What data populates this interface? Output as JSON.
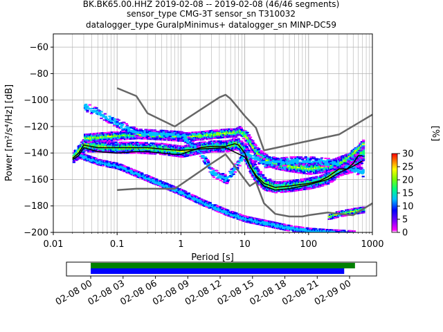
{
  "title": {
    "line1": "BK.BK65.00.HHZ   2019-02-08 -- 2019-02-08  (46/46 segments)",
    "line2": "sensor_type CMG-3T sensor_sn T310032",
    "line3": "datalogger_type GuralpMinimus+ datalogger_sn MINP-DC59"
  },
  "colorbar_label": "[%]",
  "colorbar_ticks": [
    "0",
    "5",
    "10",
    "15",
    "20",
    "25",
    "30"
  ],
  "chart_data": [
    {
      "type": "heatmap",
      "subtype": "probabilistic-power-spectral-density",
      "xlabel": "Period [s]",
      "ylabel": "Power [m²/s⁴/Hz] [dB]",
      "xscale": "log",
      "xlim": [
        0.01,
        1000
      ],
      "ylim": [
        -200,
        -50
      ],
      "x_ticks": [
        0.01,
        0.1,
        1,
        10,
        100,
        1000
      ],
      "x_tick_labels": [
        "0.01",
        "0.1",
        "1",
        "10",
        "100",
        "1000"
      ],
      "y_ticks": [
        -200,
        -180,
        -160,
        -140,
        -120,
        -100,
        -80,
        -60
      ],
      "y_tick_labels": [
        "−200",
        "−180",
        "−160",
        "−140",
        "−120",
        "−100",
        "−80",
        "−60"
      ],
      "grid": true,
      "colormap": [
        "#ffffff",
        "#ff00ff",
        "#8000ff",
        "#0000ff",
        "#00bfff",
        "#00ff80",
        "#80ff00",
        "#ffff00",
        "#ff8000",
        "#ff0000"
      ],
      "colorbar_range": [
        0,
        30
      ],
      "density_bands": [
        {
          "name": "main",
          "x": [
            0.02,
            0.025,
            0.03,
            0.05,
            0.1,
            0.2,
            0.5,
            1,
            2,
            3,
            5,
            7,
            8,
            10,
            12,
            15,
            20,
            30,
            50,
            70,
            100,
            150,
            200,
            300,
            500,
            700
          ],
          "y": [
            -143,
            -138,
            -134,
            -135,
            -136,
            -136,
            -137,
            -139,
            -136,
            -135,
            -135,
            -133,
            -134,
            -140,
            -150,
            -157,
            -163,
            -166,
            -165,
            -164,
            -163,
            -161,
            -158,
            -152,
            -148,
            -140
          ],
          "spread": [
            4,
            5,
            5,
            4,
            4,
            4,
            4,
            4,
            4,
            4,
            4,
            4,
            5,
            7,
            6,
            6,
            5,
            4,
            4,
            4,
            4,
            4,
            5,
            5,
            6,
            6
          ]
        },
        {
          "name": "upper",
          "x": [
            0.03,
            0.05,
            0.1,
            0.2,
            0.5,
            1,
            2,
            3,
            5,
            7,
            8,
            10,
            15,
            20,
            30,
            50,
            100,
            200,
            300,
            500,
            700
          ],
          "y": [
            -129,
            -128,
            -127,
            -126,
            -127,
            -128,
            -127,
            -126,
            -125,
            -125,
            -123,
            -127,
            -140,
            -145,
            -148,
            -150,
            -152,
            -150,
            -147,
            -143,
            -138
          ],
          "spread": [
            3,
            3,
            3,
            3,
            3,
            3,
            3,
            3,
            3,
            3,
            3,
            4,
            4,
            4,
            4,
            4,
            4,
            4,
            4,
            4,
            4
          ]
        },
        {
          "name": "scattered",
          "x": [
            0.03,
            0.05,
            0.1,
            0.2,
            0.5,
            1,
            2,
            3,
            5,
            10,
            20,
            50,
            100,
            300,
            700
          ],
          "y": [
            -105,
            -110,
            -118,
            -125,
            -126,
            -127,
            -140,
            -155,
            -160,
            -140,
            -148,
            -146,
            -146,
            -148,
            -155
          ],
          "spread": [
            3,
            3,
            3,
            3,
            3,
            3,
            3,
            3,
            3,
            3,
            3,
            3,
            3,
            3,
            3
          ]
        },
        {
          "name": "low-diagonal",
          "x": [
            0.025,
            0.05,
            0.1,
            0.2,
            0.5,
            1,
            2,
            5,
            10,
            20,
            50,
            100,
            200,
            500
          ],
          "y": [
            -142,
            -147,
            -150,
            -156,
            -164,
            -170,
            -177,
            -185,
            -190,
            -193,
            -197,
            -199,
            -200,
            -201
          ],
          "spread": [
            2,
            2,
            2,
            2,
            2,
            2,
            2,
            2,
            2,
            2,
            2,
            2,
            2,
            2
          ]
        },
        {
          "name": "long-period-patches",
          "x": [
            200,
            300,
            500,
            700
          ],
          "y": [
            -188,
            -186,
            -184,
            -183
          ],
          "spread": [
            2,
            2,
            2,
            2
          ]
        },
        {
          "name": "long-period-upper",
          "x": [
            300,
            500,
            700
          ],
          "y": [
            -148,
            -140,
            -133
          ],
          "spread": [
            3,
            3,
            3
          ]
        }
      ],
      "series": [
        {
          "name": "",
          "style": "black",
          "x": [
            0.02,
            0.025,
            0.03,
            0.05,
            0.1,
            0.2,
            0.3,
            0.5,
            0.8,
            1,
            1.5,
            2,
            3,
            5,
            7,
            8,
            10,
            12,
            15,
            20,
            30,
            50,
            70,
            100,
            150,
            200,
            300,
            400,
            500,
            600,
            700
          ],
          "y": [
            -145,
            -142,
            -136,
            -139,
            -140,
            -139,
            -139,
            -140,
            -141,
            -141,
            -138,
            -136,
            -135,
            -135,
            -133,
            -134,
            -140,
            -150,
            -157,
            -163,
            -166,
            -165,
            -164,
            -163,
            -161,
            -158,
            -152,
            -152,
            -148,
            -142,
            -142
          ]
        },
        {
          "name": "",
          "style": "black",
          "x": [
            0.02,
            0.025,
            0.03,
            0.05,
            0.1,
            0.2,
            0.3,
            0.5,
            1,
            2,
            5,
            10,
            15,
            20,
            30,
            50,
            100,
            200,
            300,
            500,
            700
          ],
          "y": [
            -144,
            -140,
            -134,
            -136,
            -136,
            -136,
            -136,
            -137,
            -138,
            -137,
            -136,
            -143,
            -158,
            -165,
            -168,
            -167,
            -164,
            -160,
            -155,
            -150,
            -146
          ]
        },
        {
          "name": "",
          "style": "gray",
          "x": [
            0.1,
            0.2,
            0.3,
            0.8,
            4,
            5,
            6,
            10,
            15,
            20,
            300,
            1000
          ],
          "y": [
            -91,
            -97,
            -110,
            -120,
            -98,
            -96,
            -99,
            -112,
            -121,
            -138,
            -126,
            -111
          ]
        },
        {
          "name": "",
          "style": "gray",
          "x": [
            0.1,
            0.2,
            0.8,
            3,
            5,
            7,
            10,
            12,
            15,
            20,
            30,
            50,
            80,
            100,
            200,
            300,
            500,
            1000
          ],
          "y": [
            -168,
            -167,
            -167,
            -148,
            -141,
            -150,
            -160,
            -165,
            -162,
            -178,
            -186,
            -188,
            -188,
            -187,
            -185,
            -186,
            -187,
            -178
          ]
        }
      ]
    },
    {
      "type": "timeline",
      "x_tick_labels": [
        "02-08 00",
        "02-08 03",
        "02-08 06",
        "02-08 09",
        "02-08 12",
        "02-08 15",
        "02-08 18",
        "02-08 21",
        "02-09 00"
      ],
      "xlim_hours": [
        -2.25,
        26.5
      ],
      "bars": [
        {
          "color": "#008000",
          "start_hours": 0,
          "end_hours": 24.5
        },
        {
          "color": "#0000ff",
          "start_hours": 0,
          "end_hours": 23.5
        }
      ]
    }
  ]
}
